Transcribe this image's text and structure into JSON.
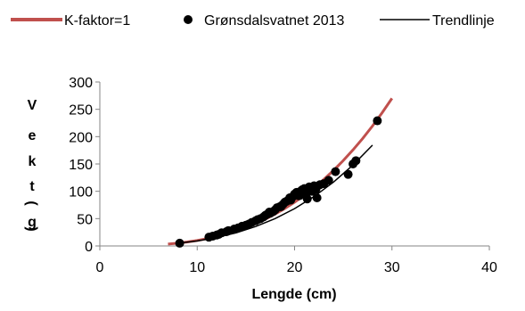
{
  "chart_data": {
    "type": "scatter",
    "xlabel": "Lengde (cm)",
    "ylabel": "Vekt (g)",
    "xlim": [
      0,
      40
    ],
    "ylim": [
      0,
      300
    ],
    "x_ticks": [
      "0",
      "10",
      "20",
      "30",
      "40"
    ],
    "y_ticks": [
      "0",
      "50",
      "100",
      "150",
      "200",
      "250",
      "300"
    ],
    "grid": false,
    "legend_position": "top",
    "series": [
      {
        "name": "K-faktor=1",
        "kind": "line",
        "color": "#c0504d",
        "x": [
          7,
          8,
          9,
          10,
          11,
          12,
          13,
          14,
          15,
          16,
          17,
          18,
          19,
          20,
          21,
          22,
          23,
          24,
          25,
          26,
          27,
          28,
          29,
          30
        ],
        "y": [
          3.4,
          5.1,
          7.3,
          10,
          13.3,
          17.3,
          22,
          27.4,
          33.8,
          41,
          49.1,
          58.3,
          68.6,
          80,
          92.6,
          106.5,
          121.7,
          138.2,
          156.3,
          175.8,
          196.8,
          219.5,
          243.9,
          270
        ]
      },
      {
        "name": "Grønsdalsvatnet 2013",
        "kind": "points",
        "color": "#000000",
        "x": [
          8.2,
          11.2,
          11.6,
          12.0,
          12.2,
          12.5,
          13.0,
          13.2,
          13.8,
          14.2,
          14.6,
          15.0,
          15.3,
          15.6,
          16.0,
          16.2,
          16.5,
          16.8,
          17.0,
          17.2,
          17.5,
          17.8,
          18.0,
          18.2,
          18.5,
          18.8,
          19.0,
          19.2,
          19.5,
          19.8,
          20.0,
          20.2,
          20.4,
          20.6,
          20.8,
          21.0,
          21.2,
          21.5,
          21.8,
          22.0,
          22.3,
          22.6,
          23.0,
          23.5,
          24.2,
          25.5,
          26.0,
          26.3,
          28.5,
          19.6,
          20.5,
          21.3,
          22.2,
          18.6,
          17.4
        ],
        "y": [
          5,
          16,
          18,
          20,
          21,
          24,
          26,
          28,
          31,
          33,
          36,
          38,
          40,
          43,
          46,
          48,
          50,
          53,
          56,
          58,
          60,
          63,
          66,
          70,
          72,
          76,
          80,
          82,
          88,
          90,
          95,
          98,
          92,
          100,
          103,
          105,
          96,
          108,
          100,
          110,
          88,
          112,
          114,
          120,
          136,
          131,
          150,
          156,
          229,
          84,
          92,
          86,
          104,
          72,
          62
        ]
      },
      {
        "name": "Trendlinje",
        "kind": "line",
        "color": "#000000",
        "x": [
          8,
          10,
          12,
          14,
          16,
          18,
          20,
          22,
          24,
          26,
          28
        ],
        "y": [
          4.8,
          9.1,
          15.4,
          24.1,
          35.5,
          50.1,
          68.3,
          90.4,
          116.9,
          148.1,
          184.4
        ]
      }
    ]
  },
  "ylabel_letters": [
    "V",
    "e",
    "k",
    "t",
    "(",
    "g",
    ")"
  ]
}
